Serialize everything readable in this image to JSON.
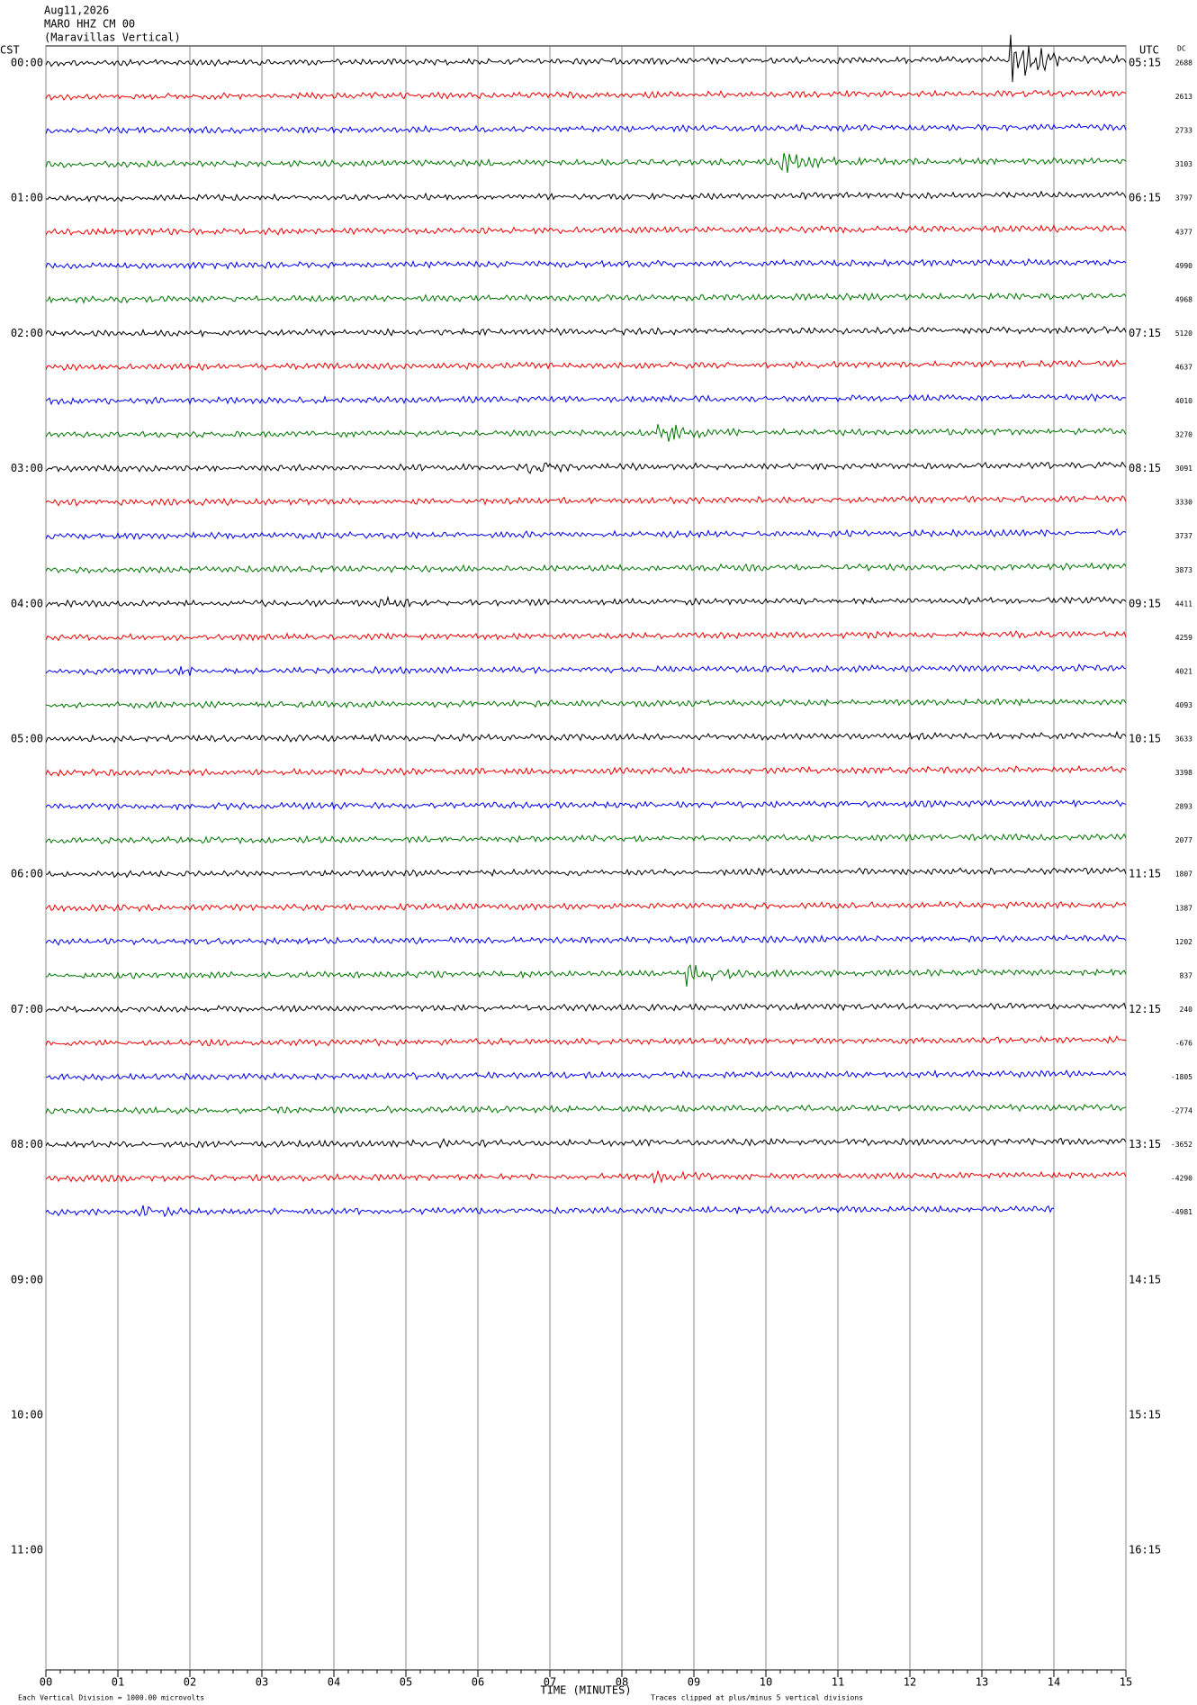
{
  "header": {
    "date": "Aug11,2026",
    "station": "MARO HHZ CM 00",
    "location": "(Maravillas Vertical)"
  },
  "left_label": "CST",
  "right_label": "UTC",
  "dc_label": "DC",
  "left_times": [
    "00:00",
    "01:00",
    "02:00",
    "03:00",
    "04:00",
    "05:00",
    "06:00",
    "07:00",
    "08:00",
    "09:00",
    "10:00",
    "11:00"
  ],
  "right_times": [
    "05:15",
    "06:15",
    "07:15",
    "08:15",
    "09:15",
    "10:15",
    "11:15",
    "12:15",
    "13:15",
    "14:15",
    "15:15",
    "16:15"
  ],
  "dc_values": [
    "2688",
    "2613",
    "2733",
    "3103",
    "3797",
    "4377",
    "4990",
    "4968",
    "5120",
    "4637",
    "4010",
    "3270",
    "3091",
    "3330",
    "3737",
    "3873",
    "4411",
    "4259",
    "4021",
    "4093",
    "3633",
    "3398",
    "2893",
    "2077",
    "1807",
    "1387",
    "1202",
    "837",
    "240",
    "-676",
    "-1805",
    "-2774",
    "-3652",
    "-4290",
    "-4981"
  ],
  "x_ticks": [
    "00",
    "01",
    "02",
    "03",
    "04",
    "05",
    "06",
    "07",
    "08",
    "09",
    "10",
    "11",
    "12",
    "13",
    "14",
    "15"
  ],
  "x_axis_label": "TIME (MINUTES)",
  "footer": {
    "scale": "Each Vertical Division = 1000.00 microvolts",
    "clip": "Traces clipped at plus/minus 5 vertical divisions"
  }
}
